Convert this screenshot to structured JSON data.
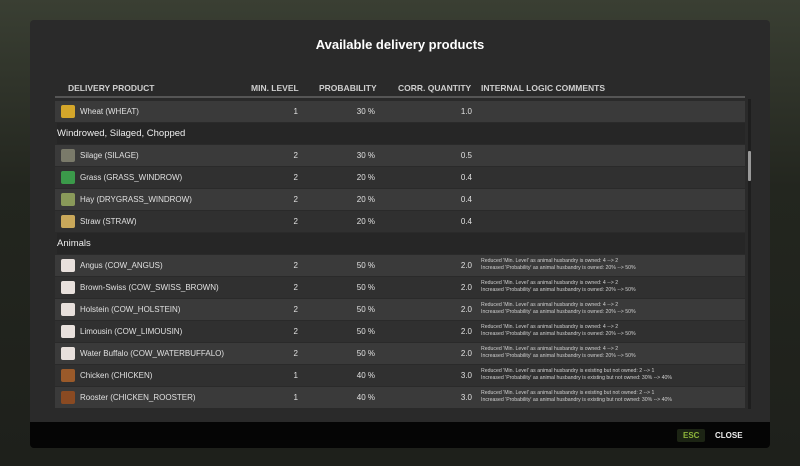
{
  "title": "Available delivery products",
  "columns": [
    "DELIVERY PRODUCT",
    "MIN. LEVEL",
    "PROBABILITY",
    "CORR. QUANTITY",
    "INTERNAL LOGIC COMMENTS"
  ],
  "rows": [
    {
      "name": "Wheat (WHEAT)",
      "level": "1",
      "prob": "30 %",
      "qty": "1.0",
      "icon": "wheat-icon",
      "color": "#d4a62a",
      "c1": "",
      "c2": ""
    },
    {
      "section": "Windrowed, Silaged, Chopped"
    },
    {
      "name": "Silage (SILAGE)",
      "level": "2",
      "prob": "30 %",
      "qty": "0.5",
      "icon": "silage-icon",
      "color": "#7a7a6a",
      "c1": "",
      "c2": ""
    },
    {
      "name": "Grass (GRASS_WINDROW)",
      "level": "2",
      "prob": "20 %",
      "qty": "0.4",
      "icon": "grass-icon",
      "color": "#3b9a4a",
      "c1": "",
      "c2": ""
    },
    {
      "name": "Hay (DRYGRASS_WINDROW)",
      "level": "2",
      "prob": "20 %",
      "qty": "0.4",
      "icon": "hay-icon",
      "color": "#8a9a5a",
      "c1": "",
      "c2": ""
    },
    {
      "name": "Straw (STRAW)",
      "level": "2",
      "prob": "20 %",
      "qty": "0.4",
      "icon": "straw-icon",
      "color": "#c9a85a",
      "c1": "",
      "c2": ""
    },
    {
      "section": "Animals"
    },
    {
      "name": "Angus (COW_ANGUS)",
      "level": "2",
      "prob": "50 %",
      "qty": "2.0",
      "icon": "cow-icon",
      "color": "#e8e0dc",
      "c1": "Reduced 'Min. Level' as animal husbandry is owned: 4 --> 2",
      "c2": "Increased 'Probability' as animal husbandry is owned: 20% --> 50%"
    },
    {
      "name": "Brown-Swiss (COW_SWISS_BROWN)",
      "level": "2",
      "prob": "50 %",
      "qty": "2.0",
      "icon": "cow-icon",
      "color": "#e8e0dc",
      "c1": "Reduced 'Min. Level' as animal husbandry is owned: 4 --> 2",
      "c2": "Increased 'Probability' as animal husbandry is owned: 20% --> 50%"
    },
    {
      "name": "Holstein (COW_HOLSTEIN)",
      "level": "2",
      "prob": "50 %",
      "qty": "2.0",
      "icon": "cow-icon",
      "color": "#e8e0dc",
      "c1": "Reduced 'Min. Level' as animal husbandry is owned: 4 --> 2",
      "c2": "Increased 'Probability' as animal husbandry is owned: 20% --> 50%"
    },
    {
      "name": "Limousin (COW_LIMOUSIN)",
      "level": "2",
      "prob": "50 %",
      "qty": "2.0",
      "icon": "cow-icon",
      "color": "#e8e0dc",
      "c1": "Reduced 'Min. Level' as animal husbandry is owned: 4 --> 2",
      "c2": "Increased 'Probability' as animal husbandry is owned: 20% --> 50%"
    },
    {
      "name": "Water Buffalo (COW_WATERBUFFALO)",
      "level": "2",
      "prob": "50 %",
      "qty": "2.0",
      "icon": "cow-icon",
      "color": "#e8e0dc",
      "c1": "Reduced 'Min. Level' as animal husbandry is owned: 4 --> 2",
      "c2": "Increased 'Probability' as animal husbandry is owned: 20% --> 50%"
    },
    {
      "name": "Chicken (CHICKEN)",
      "level": "1",
      "prob": "40 %",
      "qty": "3.0",
      "icon": "chicken-icon",
      "color": "#9a5a2a",
      "c1": "Reduced 'Min. Level' as animal husbandry is existing but not owned: 2 --> 1",
      "c2": "Increased 'Probability' as animal husbandry is existing but not owned: 30% --> 40%"
    },
    {
      "name": "Rooster (CHICKEN_ROOSTER)",
      "level": "1",
      "prob": "40 %",
      "qty": "3.0",
      "icon": "rooster-icon",
      "color": "#8a4a22",
      "c1": "Reduced 'Min. Level' as animal husbandry is existing but not owned: 2 --> 1",
      "c2": "Increased 'Probability' as animal husbandry is existing but not owned: 30% --> 40%"
    }
  ],
  "footer": {
    "esc": "ESC",
    "close": "CLOSE"
  }
}
